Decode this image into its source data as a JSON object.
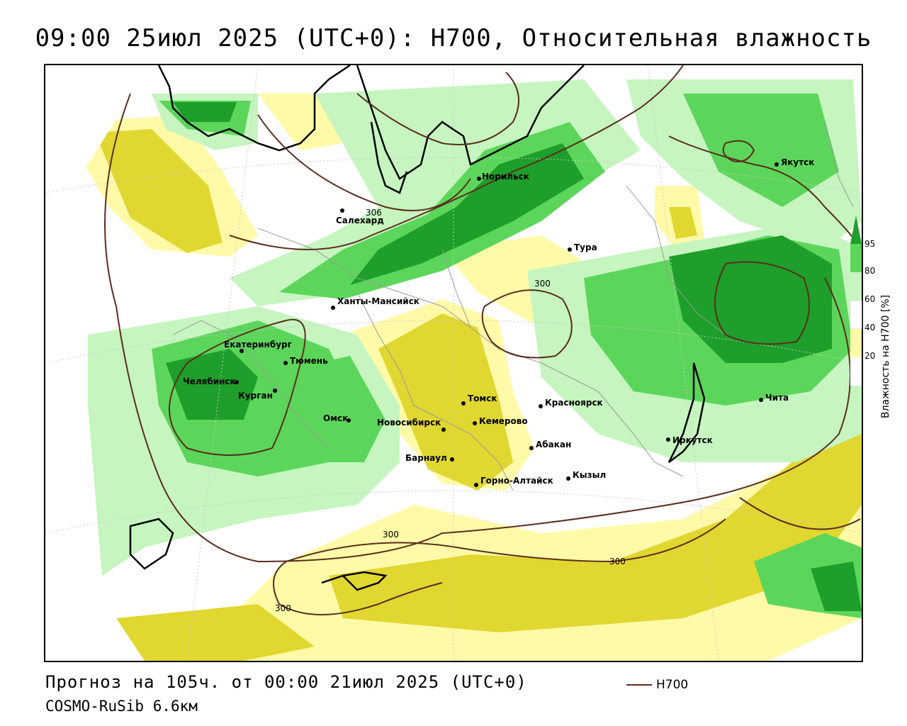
{
  "title": "09:00 25июл 2025 (UTC+0): H700, Относительная влажность",
  "footer": {
    "forecast": "Прогноз на 105ч. от 00:00 21июл 2025 (UTC+0)",
    "model": "COSMO-RuSib 6.6км"
  },
  "line_legend": {
    "label": "H700",
    "color": "#5a2e1e"
  },
  "colorbar": {
    "title": "Влажность на H700 [%]",
    "ticks": [
      "20",
      "40",
      "60",
      "80",
      "95"
    ],
    "colors": {
      "dry_dark": "#e1d731",
      "dry_light": "#fffaa8",
      "neutral": "#ffffff",
      "wet_light": "#c6f5c0",
      "wet_mid": "#5cd65a",
      "wet_dark": "#1e9e2a"
    }
  },
  "cities": [
    {
      "name": "Якутск"
    },
    {
      "name": "Норильск"
    },
    {
      "name": "Салехард"
    },
    {
      "name": "Тура"
    },
    {
      "name": "Ханты-Мансийск"
    },
    {
      "name": "Екатеринбург"
    },
    {
      "name": "Тюмень"
    },
    {
      "name": "Челябинск"
    },
    {
      "name": "Курган"
    },
    {
      "name": "Омск"
    },
    {
      "name": "Томск"
    },
    {
      "name": "Красноярск"
    },
    {
      "name": "Новосибирск"
    },
    {
      "name": "Кемерово"
    },
    {
      "name": "Абакан"
    },
    {
      "name": "Иркутск"
    },
    {
      "name": "Барнаул"
    },
    {
      "name": "Чита"
    },
    {
      "name": "Кызыл"
    },
    {
      "name": "Горно-Алтайск"
    }
  ],
  "contour_labels": [
    "300",
    "300",
    "300",
    "300",
    "306"
  ]
}
